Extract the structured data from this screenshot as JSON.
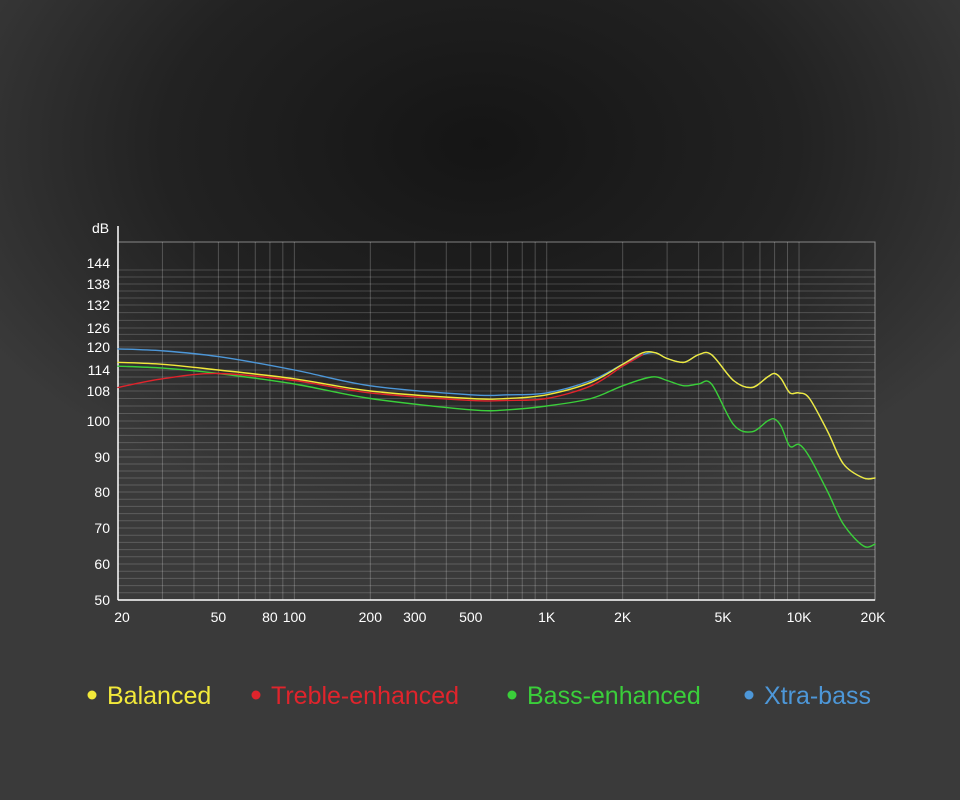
{
  "chart_data": {
    "type": "line",
    "y_unit_label": "dB",
    "x_scale": "log",
    "xlim": [
      20,
      20000
    ],
    "x_ticks": [
      {
        "value": 20,
        "label": "20"
      },
      {
        "value": 50,
        "label": "50"
      },
      {
        "value": 80,
        "label": "80"
      },
      {
        "value": 100,
        "label": "100"
      },
      {
        "value": 200,
        "label": "200"
      },
      {
        "value": 300,
        "label": "300"
      },
      {
        "value": 500,
        "label": "500"
      },
      {
        "value": 1000,
        "label": "1K"
      },
      {
        "value": 2000,
        "label": "2K"
      },
      {
        "value": 5000,
        "label": "5K"
      },
      {
        "value": 10000,
        "label": "10K"
      },
      {
        "value": 20000,
        "label": "20K"
      }
    ],
    "y_ticks": [
      50,
      60,
      70,
      80,
      90,
      100,
      108,
      114,
      120,
      126,
      132,
      138,
      144
    ],
    "grid": true,
    "legend_position": "bottom",
    "series": [
      {
        "name": "Balanced",
        "color": "#f2e93a",
        "x": [
          20,
          30,
          50,
          100,
          200,
          500,
          700,
          1000,
          1500,
          2000,
          2400,
          2700,
          3000,
          3500,
          4000,
          4500,
          5500,
          6500,
          7500,
          8000,
          8500,
          9200,
          10000,
          11000,
          13000,
          15000,
          18000,
          20000
        ],
        "y": [
          116,
          115.5,
          114,
          111.5,
          108,
          106,
          106,
          107,
          110.5,
          115.5,
          118.5,
          118.5,
          117,
          116,
          118,
          118,
          111,
          109,
          112,
          113,
          111.5,
          107.5,
          107.5,
          106,
          97,
          88,
          84,
          84
        ]
      },
      {
        "name": "Treble-enhanced",
        "color": "#e0242c",
        "x": [
          20,
          30,
          50,
          100,
          200,
          500,
          700,
          1000,
          1500,
          2000,
          2400
        ],
        "y": [
          109,
          111.5,
          113,
          111,
          107.5,
          105.5,
          105.5,
          106,
          109.5,
          115,
          118
        ]
      },
      {
        "name": "Bass-enhanced",
        "color": "#3acf3a",
        "x": [
          20,
          30,
          50,
          100,
          200,
          500,
          700,
          1000,
          1500,
          2000,
          2600,
          3000,
          3500,
          4000,
          4500,
          5500,
          6500,
          7500,
          8000,
          8500,
          9200,
          10000,
          11000,
          13000,
          15000,
          18000,
          20000
        ],
        "y": [
          115,
          114.5,
          113,
          110,
          106,
          103,
          103,
          104,
          106,
          109.5,
          112,
          111,
          109.5,
          110,
          110,
          99,
          97,
          100,
          100.5,
          98.5,
          93,
          93.5,
          90,
          80,
          71,
          65,
          65.5
        ]
      },
      {
        "name": "Xtra-bass",
        "color": "#4d97d8",
        "x": [
          20,
          30,
          50,
          100,
          200,
          500,
          700,
          1000,
          1500,
          2000,
          2400,
          2700,
          3000,
          3500,
          4000,
          4500,
          5500,
          6500,
          7500,
          8000,
          8500,
          9200,
          10000,
          11000,
          13000,
          15000,
          18000,
          20000
        ],
        "y": [
          119.5,
          119,
          117.5,
          114,
          109.5,
          107,
          107,
          107.5,
          111,
          115.5,
          118,
          118.5,
          117,
          116,
          118,
          118,
          111,
          109,
          112,
          113,
          111.5,
          107.5,
          107.5,
          106,
          97,
          88,
          84,
          84
        ]
      }
    ]
  }
}
